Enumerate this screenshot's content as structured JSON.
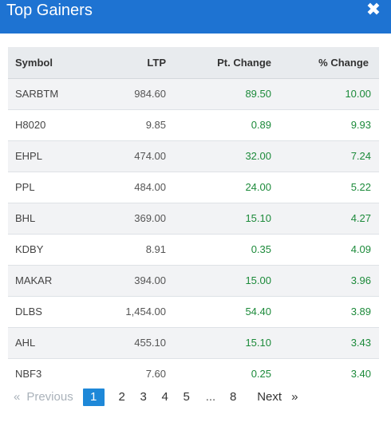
{
  "header": {
    "title": "Top Gainers",
    "close_glyph": "✖"
  },
  "table": {
    "columns": [
      "Symbol",
      "LTP",
      "Pt. Change",
      "% Change"
    ],
    "rows": [
      {
        "symbol": "SARBTM",
        "ltp": "984.60",
        "pt_change": "89.50",
        "pct_change": "10.00"
      },
      {
        "symbol": "H8020",
        "ltp": "9.85",
        "pt_change": "0.89",
        "pct_change": "9.93"
      },
      {
        "symbol": "EHPL",
        "ltp": "474.00",
        "pt_change": "32.00",
        "pct_change": "7.24"
      },
      {
        "symbol": "PPL",
        "ltp": "484.00",
        "pt_change": "24.00",
        "pct_change": "5.22"
      },
      {
        "symbol": "BHL",
        "ltp": "369.00",
        "pt_change": "15.10",
        "pct_change": "4.27"
      },
      {
        "symbol": "KDBY",
        "ltp": "8.91",
        "pt_change": "0.35",
        "pct_change": "4.09"
      },
      {
        "symbol": "MAKAR",
        "ltp": "394.00",
        "pt_change": "15.00",
        "pct_change": "3.96"
      },
      {
        "symbol": "DLBS",
        "ltp": "1,454.00",
        "pt_change": "54.40",
        "pct_change": "3.89"
      },
      {
        "symbol": "AHL",
        "ltp": "455.10",
        "pt_change": "15.10",
        "pct_change": "3.43"
      },
      {
        "symbol": "NBF3",
        "ltp": "7.60",
        "pt_change": "0.25",
        "pct_change": "3.40"
      }
    ]
  },
  "pagination": {
    "prev_arrow": "«",
    "prev_label": "Previous",
    "pages": [
      "1",
      "2",
      "3",
      "4",
      "5"
    ],
    "active_page": "1",
    "ellipsis": "...",
    "last_page": "8",
    "next_label": "Next",
    "next_arrow": "»"
  },
  "colors": {
    "header_bg": "#1e73d2",
    "positive": "#1c8a3a",
    "active_page_bg": "#1e88d8"
  }
}
